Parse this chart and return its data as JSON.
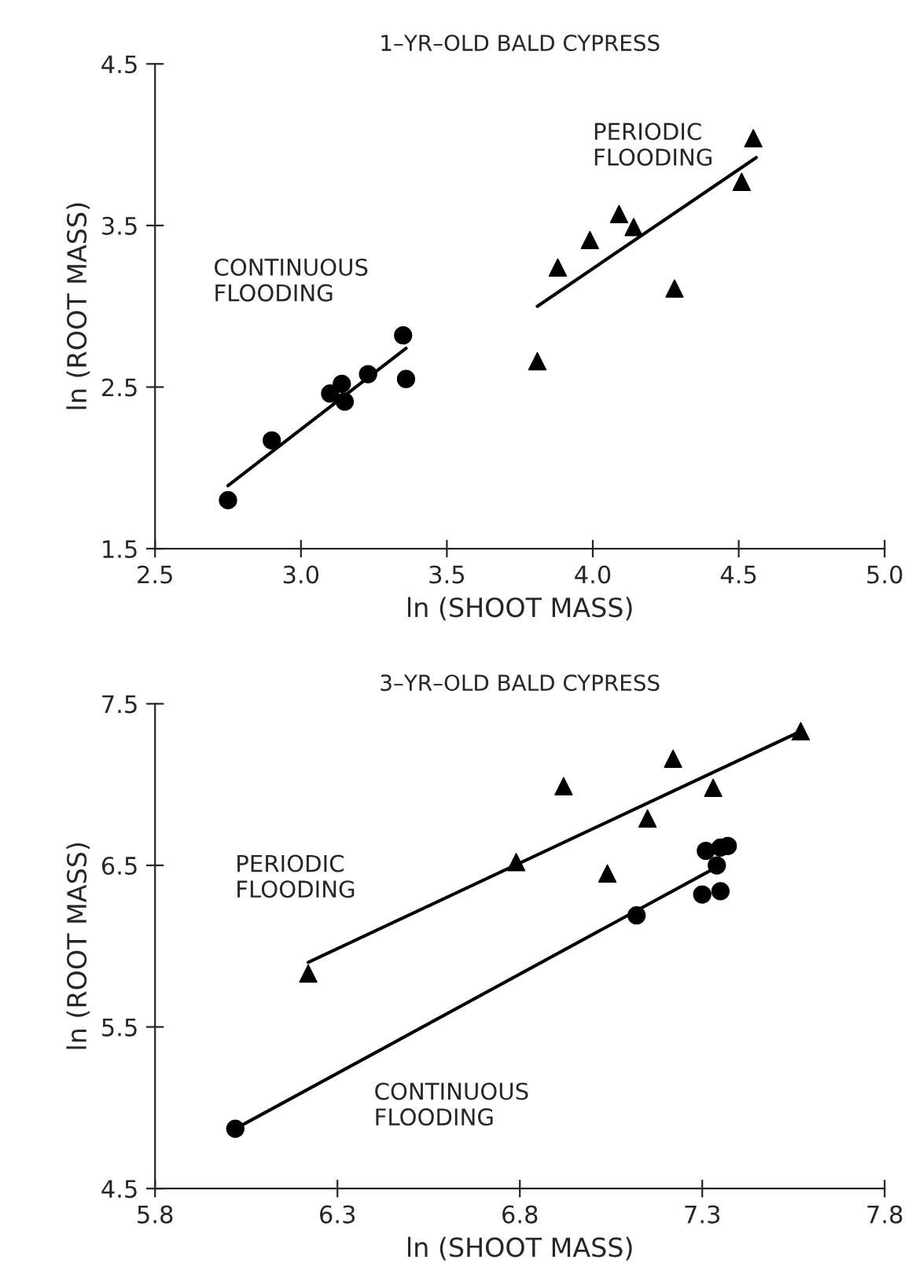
{
  "chart_data": [
    {
      "type": "scatter",
      "title": "1–YR–OLD BALD CYPRESS",
      "xlabel": "ln (SHOOT MASS)",
      "ylabel": "ln (ROOT MASS)",
      "xlim": [
        2.5,
        5.0
      ],
      "ylim": [
        1.5,
        4.5
      ],
      "xticks": [
        {
          "value": 2.5,
          "label": "2.5"
        },
        {
          "value": 3,
          "label": "3.0"
        },
        {
          "value": 3.5,
          "label": "3.5"
        },
        {
          "value": 4,
          "label": "4.0"
        },
        {
          "value": 4.5,
          "label": "4.5"
        },
        {
          "value": 5,
          "label": "5.0"
        }
      ],
      "yticks": [
        1.5,
        2.5,
        3.5,
        4.5
      ],
      "grid": false,
      "legend": false,
      "series": [
        {
          "marker": "circle",
          "color": "#000000",
          "x": [
            2.75,
            2.9,
            3.1,
            3.14,
            3.15,
            3.23,
            3.35,
            3.36
          ],
          "values": [
            1.8,
            2.17,
            2.46,
            2.52,
            2.41,
            2.58,
            2.82,
            2.55
          ]
        },
        {
          "marker": "triangle",
          "color": "#000000",
          "x": [
            3.81,
            3.88,
            3.99,
            4.09,
            4.14,
            4.28,
            4.51,
            4.55
          ],
          "values": [
            2.66,
            3.24,
            3.41,
            3.57,
            3.49,
            3.11,
            3.77,
            4.04
          ]
        },
        {
          "type": "line",
          "marker": "none",
          "line_style": "solid",
          "color": "#000000",
          "x": [
            2.75,
            3.36
          ],
          "values": [
            1.89,
            2.74
          ]
        },
        {
          "type": "line",
          "marker": "none",
          "line_style": "solid",
          "color": "#000000",
          "x": [
            3.81,
            4.56
          ],
          "values": [
            3.0,
            3.92
          ]
        }
      ],
      "annotations": [
        "CONTINUOUS\nFLOODING",
        "PERIODIC\nFLOODING"
      ]
    },
    {
      "type": "scatter",
      "title": "3–YR–OLD BALD CYPRESS",
      "xlabel": "ln (SHOOT MASS)",
      "ylabel": "ln (ROOT MASS)",
      "xlim": [
        5.8,
        7.8
      ],
      "ylim": [
        4.5,
        7.5
      ],
      "xticks": [
        5.8,
        6.3,
        6.8,
        7.3,
        7.8
      ],
      "yticks": [
        4.5,
        5.5,
        6.5,
        7.5
      ],
      "grid": false,
      "legend": false,
      "series": [
        {
          "marker": "circle",
          "color": "#000000",
          "x": [
            6.02,
            7.12,
            7.31,
            7.35,
            7.37,
            7.34,
            7.3,
            7.35
          ],
          "values": [
            4.87,
            6.19,
            6.59,
            6.61,
            6.62,
            6.5,
            6.32,
            6.34
          ]
        },
        {
          "marker": "triangle",
          "color": "#000000",
          "x": [
            6.22,
            6.79,
            6.92,
            7.04,
            7.15,
            7.22,
            7.33,
            7.57
          ],
          "values": [
            5.83,
            6.52,
            6.99,
            6.45,
            6.79,
            7.16,
            6.98,
            7.33
          ]
        },
        {
          "type": "line",
          "marker": "none",
          "line_style": "solid",
          "color": "#000000",
          "x": [
            6.22,
            7.57
          ],
          "values": [
            5.9,
            7.33
          ]
        },
        {
          "type": "line",
          "marker": "none",
          "line_style": "solid",
          "color": "#000000",
          "x": [
            6.02,
            7.34
          ],
          "values": [
            4.87,
            6.49
          ]
        }
      ],
      "annotations": [
        "PERIODIC\nFLOODING",
        "CONTINUOUS\nFLOODING"
      ]
    }
  ]
}
